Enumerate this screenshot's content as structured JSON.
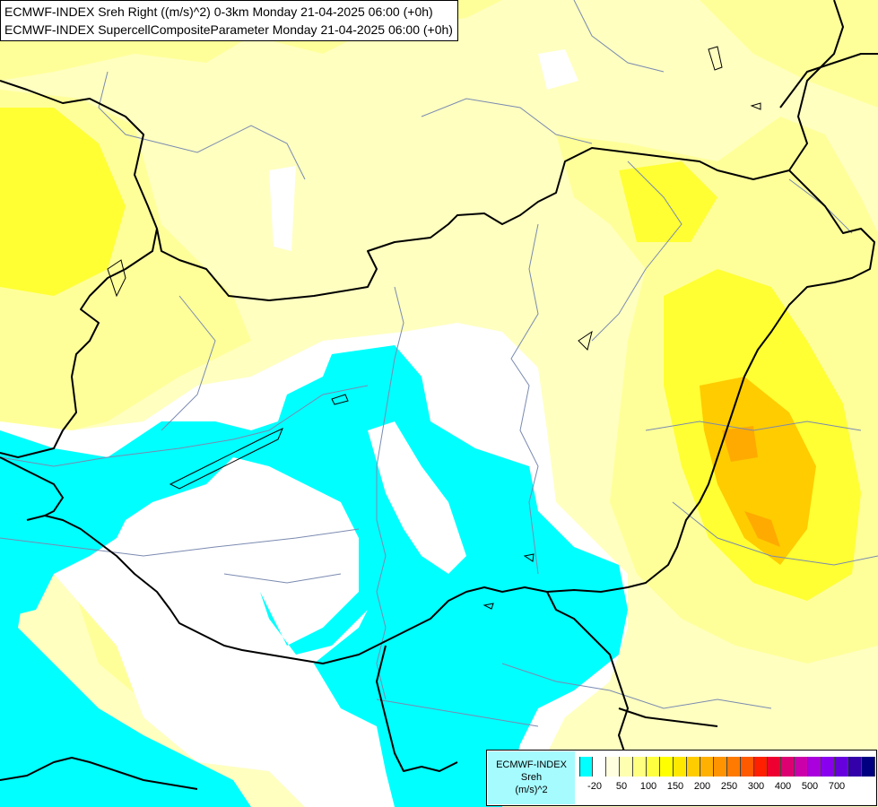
{
  "title": {
    "line1": "ECMWF-INDEX Sreh Right ((m/s)^2) 0-3km Monday 21-04-2025 06:00 (+0h)",
    "line2": "ECMWF-INDEX SupercellCompositeParameter Monday 21-04-2025 06:00 (+0h)"
  },
  "legend": {
    "source": "ECMWF-INDEX",
    "variable": "Sreh",
    "unit": "(m/s)^2",
    "colors": [
      "#00ffff",
      "#ffffff",
      "#ffffe0",
      "#ffffb0",
      "#ffff80",
      "#ffff40",
      "#ffff00",
      "#ffe800",
      "#ffcc00",
      "#ffb000",
      "#ff9400",
      "#ff7a00",
      "#ff5a00",
      "#ff2000",
      "#ee0030",
      "#dd0070",
      "#cc00aa",
      "#aa00dd",
      "#8800ee",
      "#6600dd",
      "#3300aa",
      "#000080"
    ],
    "tick_labels": [
      "-20",
      "50",
      "100",
      "150",
      "200",
      "250",
      "300",
      "400",
      "500",
      "700"
    ]
  }
}
